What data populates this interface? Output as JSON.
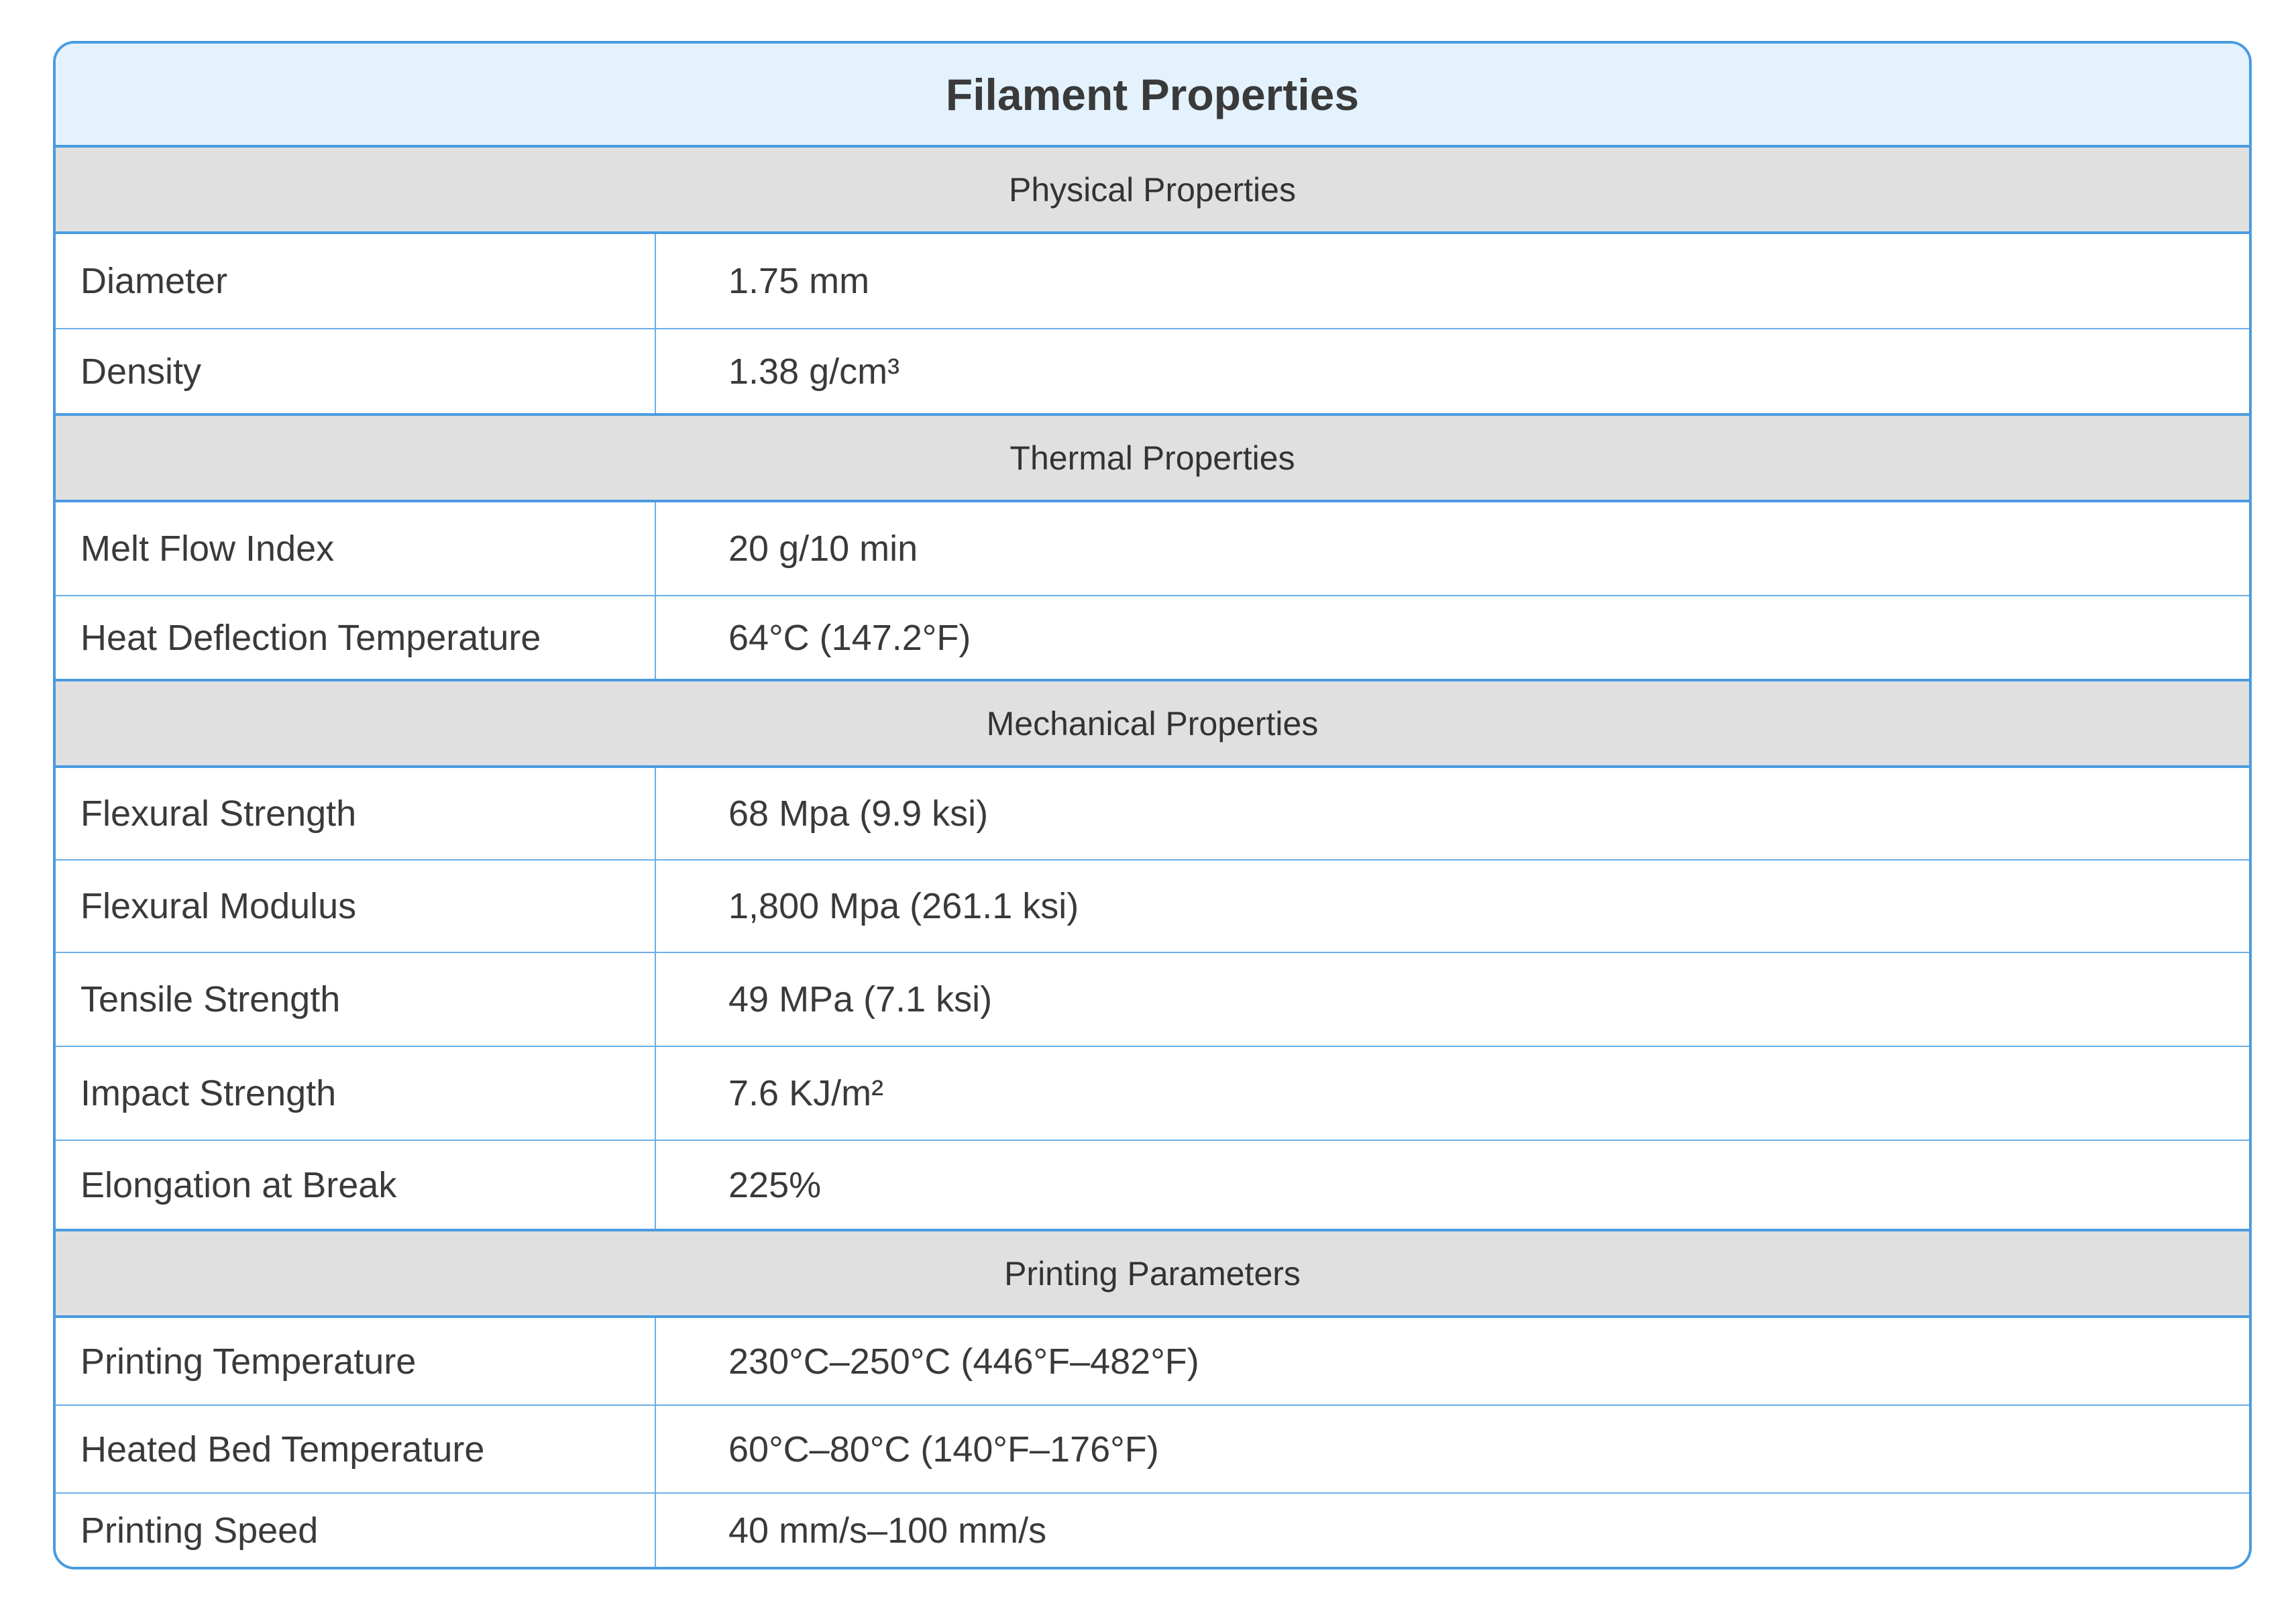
{
  "header": {
    "title": "Filament Properties"
  },
  "sections": [
    {
      "title": "Physical Properties",
      "rows": [
        [
          "Diameter",
          "1.75 mm"
        ],
        [
          "Density",
          "1.38 g/cm³"
        ]
      ]
    },
    {
      "title": "Thermal Properties",
      "rows": [
        [
          "Melt Flow Index",
          "20 g/10 min"
        ],
        [
          "Heat Deflection Temperature",
          "64°C (147.2°F)"
        ]
      ]
    },
    {
      "title": "Mechanical Properties",
      "rows": [
        [
          "Flexural Strength",
          "68 Mpa (9.9 ksi)"
        ],
        [
          "Flexural Modulus",
          "1,800 Mpa (261.1 ksi)"
        ],
        [
          "Tensile Strength",
          "49 MPa (7.1 ksi)"
        ],
        [
          "Impact Strength",
          "7.6 KJ/m²"
        ],
        [
          "Elongation at Break",
          "225%"
        ]
      ]
    },
    {
      "title": "Printing Parameters",
      "rows": [
        [
          "Printing Temperature",
          "230°C–250°C (446°F–482°F)"
        ],
        [
          "Heated Bed Temperature",
          "60°C–80°C (140°F–176°F)"
        ],
        [
          "Printing Speed",
          "40 mm/s–100 mm/s"
        ]
      ]
    }
  ]
}
